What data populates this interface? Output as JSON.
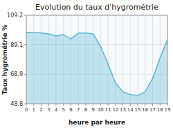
{
  "chart_data": {
    "type": "area",
    "title": "Evolution du taux d'hygrométrie",
    "xlabel": "heure par heure",
    "ylabel": "Taux hygrométrie %",
    "x": [
      0,
      1,
      2,
      3,
      4,
      5,
      6,
      7,
      8,
      9,
      10,
      11,
      12,
      13,
      14,
      15,
      16,
      17,
      18,
      19
    ],
    "values": [
      97.5,
      97.5,
      97.0,
      96.5,
      95.0,
      96.0,
      93.0,
      97.0,
      97.0,
      96.5,
      88.0,
      76.0,
      63.0,
      57.0,
      55.0,
      54.5,
      57.0,
      66.0,
      80.0,
      92.5
    ],
    "color": "#5bb8d4",
    "xlim": [
      0,
      19
    ],
    "ylim": [
      48.8,
      109.2
    ],
    "xticks": [
      0,
      1,
      2,
      3,
      4,
      5,
      6,
      7,
      8,
      9,
      10,
      11,
      12,
      13,
      14,
      15,
      16,
      17,
      18,
      19
    ],
    "yticks": [
      48.8,
      68.9,
      89.1,
      109.2
    ],
    "grid": true
  }
}
